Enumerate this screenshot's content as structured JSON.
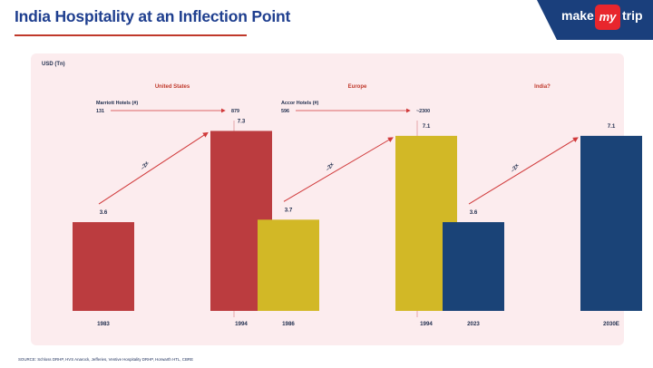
{
  "title": "India Hospitality at an Inflection Point",
  "logo": {
    "make": "make",
    "my": "my",
    "trip": "trip"
  },
  "unit_label": "USD (Tn)",
  "source": "SOURCE: Schloss DRHP, HVS Anarock, Jefferies, Ventive Hospitality DRHP, Horwarth HTL, CBRE",
  "chart_data": [
    {
      "type": "bar",
      "title": "United States",
      "categories": [
        "1983",
        "1994"
      ],
      "values": [
        3.6,
        7.3
      ],
      "value_labels": [
        "3.6",
        "7.3"
      ],
      "color": "#bb3c3f",
      "arrow_label": "~2x",
      "annotation": {
        "label": "Marriott Hotels (#)",
        "from": "131",
        "to": "879"
      }
    },
    {
      "type": "bar",
      "title": "Europe",
      "categories": [
        "1986",
        "1994"
      ],
      "values": [
        3.7,
        7.1
      ],
      "value_labels": [
        "3.7",
        "7.1"
      ],
      "color": "#d2b826",
      "arrow_label": "~2x",
      "annotation": {
        "label": "Accor Hotels (#)",
        "from": "596",
        "to": "~2300"
      }
    },
    {
      "type": "bar",
      "title": "India?",
      "categories": [
        "2023",
        "2030E"
      ],
      "values": [
        3.6,
        7.1
      ],
      "value_labels": [
        "3.6",
        "7.1"
      ],
      "color": "#1a4377",
      "arrow_label": "~2x",
      "annotation": null
    }
  ],
  "colors": {
    "title": "#1f3f8f",
    "accent": "#c0392b",
    "panel_bg": "#fcecee",
    "logo_bg": "#1a3f7c",
    "logo_my": "#e8262d"
  }
}
